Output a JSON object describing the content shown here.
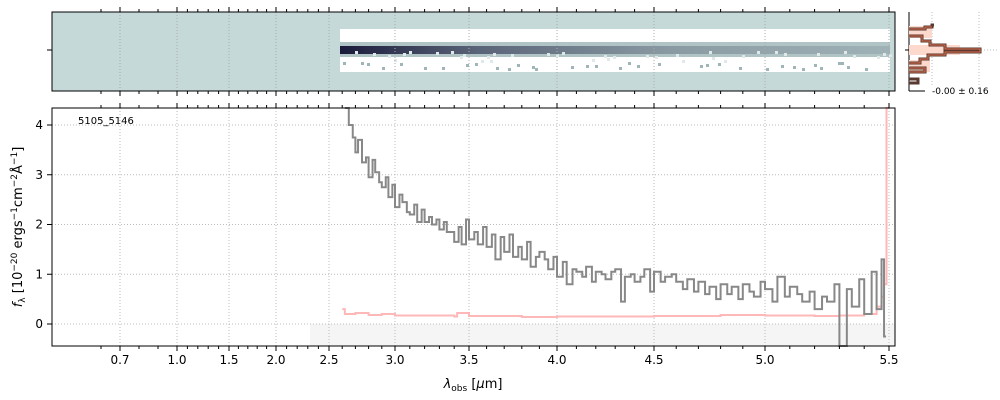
{
  "chart_data": {
    "type": "line",
    "object_label": "5105_5146",
    "xlabel": "λobs [μm]",
    "ylabel": "f_λ [10^-20 ergs^-1 cm^-2 Å^-1]",
    "xticks": [
      "0.7",
      "1.0",
      "1.5",
      "2.0",
      "2.5",
      "3.0",
      "3.5",
      "4.0",
      "4.5",
      "5.0",
      "5.5"
    ],
    "xtick_values": [
      0.7,
      1.0,
      1.5,
      2.0,
      2.5,
      3.0,
      3.5,
      4.0,
      4.5,
      5.0,
      5.5
    ],
    "yticks": [
      "0",
      "1",
      "2",
      "3",
      "4"
    ],
    "ylim": [
      -0.45,
      4.35
    ],
    "grid": true,
    "colors": {
      "flux": "#888888",
      "error": "#ffb0b0",
      "image_bg": "#c5d9d8",
      "hist": "#5a3a30",
      "hist_edge": "#e07050"
    },
    "series": [
      {
        "name": "flux",
        "x": [
          2.62,
          2.65,
          2.68,
          2.7,
          2.72,
          2.75,
          2.78,
          2.8,
          2.83,
          2.85,
          2.88,
          2.9,
          2.93,
          2.95,
          2.98,
          3.0,
          3.03,
          3.05,
          3.08,
          3.1,
          3.13,
          3.15,
          3.18,
          3.2,
          3.23,
          3.25,
          3.28,
          3.3,
          3.33,
          3.35,
          3.38,
          3.4,
          3.43,
          3.45,
          3.48,
          3.5,
          3.53,
          3.55,
          3.58,
          3.6,
          3.63,
          3.65,
          3.68,
          3.7,
          3.73,
          3.75,
          3.78,
          3.8,
          3.83,
          3.85,
          3.88,
          3.9,
          3.93,
          3.95,
          3.98,
          4.0,
          4.03,
          4.05,
          4.08,
          4.1,
          4.13,
          4.15,
          4.18,
          4.2,
          4.23,
          4.25,
          4.28,
          4.3,
          4.33,
          4.35,
          4.38,
          4.4,
          4.43,
          4.45,
          4.48,
          4.5,
          4.53,
          4.55,
          4.58,
          4.6,
          4.63,
          4.65,
          4.68,
          4.7,
          4.73,
          4.75,
          4.78,
          4.8,
          4.83,
          4.85,
          4.88,
          4.9,
          4.93,
          4.95,
          4.98,
          5.0,
          5.03,
          5.05,
          5.08,
          5.1,
          5.13,
          5.15,
          5.18,
          5.2,
          5.23,
          5.25,
          5.28,
          5.3,
          5.33,
          5.35,
          5.38,
          5.4,
          5.43,
          5.45,
          5.47,
          5.48
        ],
        "y": [
          4.35,
          4.0,
          3.75,
          3.45,
          3.7,
          3.25,
          3.35,
          2.95,
          3.3,
          3.05,
          2.85,
          2.75,
          2.95,
          2.55,
          2.8,
          2.35,
          2.6,
          2.45,
          2.25,
          2.2,
          2.4,
          2.05,
          2.3,
          2.05,
          2.15,
          2.0,
          2.1,
          1.9,
          2.05,
          1.85,
          1.85,
          1.65,
          1.95,
          1.6,
          2.1,
          1.7,
          1.85,
          1.6,
          1.95,
          1.55,
          1.8,
          1.3,
          1.75,
          1.45,
          1.8,
          1.35,
          1.55,
          1.3,
          1.65,
          1.15,
          1.35,
          1.45,
          1.3,
          1.1,
          1.35,
          0.95,
          1.25,
          0.8,
          1.1,
          1.05,
          0.95,
          1.15,
          0.85,
          1.05,
          1.0,
          0.9,
          1.05,
          1.1,
          0.45,
          0.95,
          1.0,
          0.85,
          0.95,
          1.1,
          0.65,
          1.05,
          0.85,
          0.95,
          1.0,
          0.85,
          0.7,
          0.9,
          0.65,
          0.85,
          0.6,
          0.75,
          0.5,
          0.8,
          0.6,
          0.75,
          0.5,
          0.8,
          0.65,
          0.55,
          0.85,
          0.7,
          0.45,
          0.95,
          0.55,
          0.75,
          0.6,
          0.45,
          0.65,
          0.3,
          0.55,
          0.45,
          0.8,
          -0.45,
          0.7,
          0.35,
          0.9,
          0.2,
          1.05,
          0.3,
          1.3,
          -0.25
        ]
      },
      {
        "name": "error",
        "x": [
          2.6,
          2.62,
          2.7,
          2.8,
          2.9,
          3.0,
          3.2,
          3.4,
          3.42,
          3.5,
          3.8,
          4.0,
          4.5,
          4.8,
          5.0,
          5.2,
          5.3,
          5.4,
          5.45,
          5.47,
          5.48,
          5.49
        ],
        "y": [
          0.3,
          0.2,
          0.22,
          0.18,
          0.2,
          0.17,
          0.17,
          0.15,
          0.22,
          0.16,
          0.14,
          0.15,
          0.16,
          0.18,
          0.17,
          0.16,
          0.17,
          0.2,
          0.35,
          0.55,
          0.8,
          4.35
        ]
      }
    ],
    "inset": {
      "label": "-0.00 ± 0.16"
    }
  }
}
